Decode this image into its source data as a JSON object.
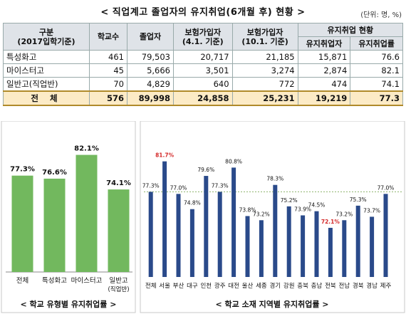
{
  "title": "< 직업계고 졸업자의 유지취업(6개월 후) 현황 >",
  "unit": "(단위: 명, %)",
  "table": {
    "headers": {
      "type_1": "구분",
      "type_2": "(2017입학기준)",
      "schools": "학교수",
      "grads": "졸업자",
      "ins1_1": "보험가입자",
      "ins1_2": "(4.1. 기준)",
      "ins2_1": "보험가입자",
      "ins2_2": "(10.1. 기준)",
      "status": "유지취업 현황",
      "emp": "유지취업자",
      "rate": "유지취업률"
    },
    "rows": [
      {
        "type": "특성화고",
        "schools": "461",
        "grads": "79,503",
        "ins1": "20,717",
        "ins2": "21,185",
        "emp": "15,871",
        "rate": "76.6"
      },
      {
        "type": "마이스터고",
        "schools": "45",
        "grads": "5,666",
        "ins1": "3,501",
        "ins2": "3,274",
        "emp": "2,874",
        "rate": "82.1"
      },
      {
        "type": "일반고(직업반)",
        "schools": "70",
        "grads": "4,829",
        "ins1": "640",
        "ins2": "772",
        "emp": "474",
        "rate": "74.1"
      }
    ],
    "total": {
      "type": "전 체",
      "schools": "576",
      "grads": "89,998",
      "ins1": "24,858",
      "ins2": "25,231",
      "emp": "19,219",
      "rate": "77.3"
    }
  },
  "colors": {
    "green": "#72b85e",
    "navy": "#2a4a8a",
    "red_label": "#d42a2a",
    "ref_line": "#8db36b"
  },
  "chart_data": [
    {
      "type": "bar",
      "title": "< 학교 유형별 유지취업률 >",
      "categories": [
        "전체",
        "특성화고",
        "마이스터고",
        "일반고\n(직업반)"
      ],
      "values": [
        77.3,
        76.6,
        82.1,
        74.1
      ],
      "value_labels": [
        "77.3%",
        "76.6%",
        "82.1%",
        "74.1%"
      ]
    },
    {
      "type": "bar",
      "title": "< 학교 소재 지역별 유지취업률 >",
      "categories": [
        "전체",
        "서울",
        "부산",
        "대구",
        "인천",
        "광주",
        "대전",
        "울산",
        "세종",
        "경기",
        "강원",
        "충북",
        "충남",
        "전북",
        "전남",
        "경북",
        "경남",
        "제주"
      ],
      "values": [
        77.3,
        81.7,
        77.0,
        74.8,
        79.6,
        77.3,
        80.8,
        73.8,
        73.2,
        78.3,
        75.2,
        73.9,
        74.5,
        72.1,
        73.2,
        75.3,
        73.7,
        77.0
      ],
      "value_labels": [
        "77.3%",
        "81.7%",
        "77.0%",
        "74.8%",
        "79.6%",
        "77.3%",
        "80.8%",
        "73.8%",
        "73.2%",
        "78.3%",
        "75.2%",
        "73.9%",
        "74.5%",
        "72.1%",
        "73.2%",
        "75.3%",
        "73.7%",
        "77.0%"
      ],
      "highlighted": [
        "서울",
        "전북"
      ],
      "reference_line": 77.3
    }
  ]
}
